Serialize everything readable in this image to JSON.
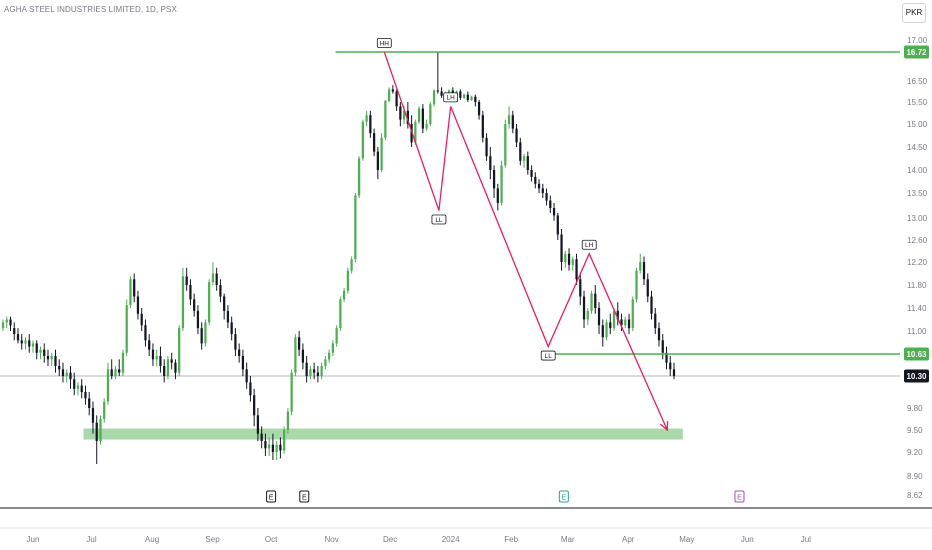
{
  "header": {
    "title": "AGHA STEEL INDUSTRIES LIMITED, 1D, PSX",
    "currency": "PKR"
  },
  "colors": {
    "up": "#4caf50",
    "down": "#131722",
    "level_line": "#4caf50",
    "pattern_line": "#e91e63",
    "zone_fill": "#a5d6a7",
    "current_line": "#b2b5be"
  },
  "chart_data": {
    "type": "candlestick",
    "title": "AGHA STEEL INDUSTRIES LIMITED, 1D, PSX",
    "y_ticks": [
      "17.00",
      "16.50",
      "15.50",
      "15.00",
      "14.50",
      "14.00",
      "13.50",
      "13.00",
      "12.60",
      "12.20",
      "11.80",
      "11.40",
      "11.00",
      "9.80",
      "9.50",
      "9.20",
      "8.90",
      "8.62"
    ],
    "x_ticks": [
      "Jun",
      "Jul",
      "Aug",
      "Sep",
      "Oct",
      "Nov",
      "Dec",
      "2024",
      "Feb",
      "Mar",
      "Apr",
      "May",
      "Jun",
      "Jul"
    ],
    "price_labels": [
      {
        "value": "16.72",
        "kind": "resistance"
      },
      {
        "value": "10.63",
        "kind": "level"
      },
      {
        "value": "10.30",
        "kind": "current"
      }
    ],
    "pattern_labels": [
      "HH",
      "LL",
      "LH",
      "LL",
      "LH"
    ],
    "support_zone": {
      "from": 9.37,
      "to": 9.52
    },
    "events": [
      "E",
      "E",
      "E",
      "E"
    ],
    "path_points": [
      {
        "date": "2023-11-28",
        "price": 16.72,
        "label": "HH"
      },
      {
        "date": "2023-12-26",
        "price": 13.15,
        "label": "LL"
      },
      {
        "date": "2024-01-01",
        "price": 15.4,
        "label": "LH"
      },
      {
        "date": "2024-02-20",
        "price": 10.75,
        "label": "LL"
      },
      {
        "date": "2024-03-12",
        "price": 12.35,
        "label": "LH"
      },
      {
        "date": "2024-04-21",
        "price": 9.5,
        "label": ""
      }
    ],
    "candles": [
      [
        11.05,
        11.2,
        11.15,
        11.0
      ],
      [
        11.15,
        11.25,
        11.2,
        11.05
      ],
      [
        11.2,
        11.25,
        11.1,
        11.0
      ],
      [
        11.05,
        11.15,
        10.95,
        10.85
      ],
      [
        10.95,
        11.05,
        10.85,
        10.8
      ],
      [
        10.85,
        10.95,
        10.8,
        10.7
      ],
      [
        10.8,
        10.9,
        10.85,
        10.7
      ],
      [
        10.85,
        10.95,
        10.75,
        10.65
      ],
      [
        10.75,
        10.85,
        10.8,
        10.65
      ],
      [
        10.8,
        10.85,
        10.65,
        10.55
      ],
      [
        10.65,
        10.75,
        10.7,
        10.55
      ],
      [
        10.7,
        10.8,
        10.6,
        10.5
      ],
      [
        10.6,
        10.7,
        10.55,
        10.45
      ],
      [
        10.55,
        10.65,
        10.6,
        10.45
      ],
      [
        10.6,
        10.7,
        10.45,
        10.35
      ],
      [
        10.45,
        10.55,
        10.4,
        10.3
      ],
      [
        10.4,
        10.5,
        10.3,
        10.2
      ],
      [
        10.3,
        10.4,
        10.35,
        10.2
      ],
      [
        10.35,
        10.45,
        10.25,
        10.1
      ],
      [
        10.25,
        10.35,
        10.1,
        10.0
      ],
      [
        10.1,
        10.2,
        10.15,
        10.0
      ],
      [
        10.15,
        10.25,
        10.05,
        9.95
      ],
      [
        10.05,
        10.15,
        9.95,
        9.85
      ],
      [
        9.95,
        10.05,
        9.8,
        9.7
      ],
      [
        9.8,
        9.9,
        9.6,
        9.45
      ],
      [
        9.6,
        9.7,
        9.35,
        9.05
      ],
      [
        9.35,
        9.7,
        9.65,
        9.3
      ],
      [
        9.65,
        9.95,
        9.9,
        9.6
      ],
      [
        9.9,
        10.5,
        10.4,
        9.85
      ],
      [
        10.4,
        10.55,
        10.3,
        10.25
      ],
      [
        10.3,
        10.45,
        10.4,
        10.25
      ],
      [
        10.4,
        10.55,
        10.35,
        10.3
      ],
      [
        10.35,
        10.7,
        10.65,
        10.3
      ],
      [
        10.65,
        11.55,
        11.45,
        10.6
      ],
      [
        11.45,
        11.95,
        11.9,
        11.4
      ],
      [
        11.9,
        12.0,
        11.6,
        11.5
      ],
      [
        11.6,
        11.7,
        11.3,
        11.2
      ],
      [
        11.3,
        11.4,
        11.1,
        11.0
      ],
      [
        11.1,
        11.2,
        10.85,
        10.75
      ],
      [
        10.85,
        10.95,
        10.7,
        10.6
      ],
      [
        10.7,
        10.8,
        10.55,
        10.45
      ],
      [
        10.55,
        10.7,
        10.6,
        10.45
      ],
      [
        10.6,
        10.75,
        10.45,
        10.35
      ],
      [
        10.45,
        10.55,
        10.3,
        10.2
      ],
      [
        10.3,
        10.6,
        10.55,
        10.25
      ],
      [
        10.55,
        10.65,
        10.5,
        10.4
      ],
      [
        10.5,
        10.55,
        10.35,
        10.25
      ],
      [
        10.35,
        11.1,
        11.05,
        10.3
      ],
      [
        11.05,
        12.1,
        11.95,
        11.0
      ],
      [
        11.95,
        12.1,
        11.8,
        11.7
      ],
      [
        11.8,
        11.9,
        11.55,
        11.45
      ],
      [
        11.55,
        11.65,
        11.35,
        11.25
      ],
      [
        11.35,
        11.45,
        11.05,
        10.95
      ],
      [
        11.05,
        11.15,
        10.8,
        10.7
      ],
      [
        10.8,
        11.2,
        11.15,
        10.75
      ],
      [
        11.15,
        11.9,
        11.85,
        11.1
      ],
      [
        11.85,
        12.2,
        12.0,
        11.8
      ],
      [
        12.0,
        12.1,
        11.8,
        11.7
      ],
      [
        11.8,
        11.9,
        11.6,
        11.5
      ],
      [
        11.6,
        11.65,
        11.35,
        11.2
      ],
      [
        11.35,
        11.45,
        11.15,
        11.05
      ],
      [
        11.15,
        11.25,
        10.95,
        10.85
      ],
      [
        10.95,
        11.05,
        10.7,
        10.6
      ],
      [
        10.7,
        10.8,
        10.6,
        10.5
      ],
      [
        10.6,
        10.7,
        10.4,
        10.3
      ],
      [
        10.4,
        10.5,
        10.2,
        10.1
      ],
      [
        10.2,
        10.3,
        10.0,
        9.9
      ],
      [
        10.0,
        10.1,
        9.7,
        9.55
      ],
      [
        9.7,
        9.8,
        9.45,
        9.35
      ],
      [
        9.45,
        9.55,
        9.35,
        9.25
      ],
      [
        9.35,
        9.45,
        9.25,
        9.15
      ],
      [
        9.25,
        9.4,
        9.3,
        9.15
      ],
      [
        9.3,
        9.45,
        9.2,
        9.1
      ],
      [
        9.2,
        9.35,
        9.3,
        9.1
      ],
      [
        9.3,
        9.4,
        9.22,
        9.12
      ],
      [
        9.22,
        9.55,
        9.5,
        9.18
      ],
      [
        9.5,
        9.8,
        9.75,
        9.45
      ],
      [
        9.75,
        10.4,
        10.35,
        9.7
      ],
      [
        10.35,
        10.95,
        10.9,
        10.3
      ],
      [
        10.9,
        11.0,
        10.7,
        10.6
      ],
      [
        10.7,
        10.8,
        10.5,
        10.4
      ],
      [
        10.5,
        10.6,
        10.3,
        10.2
      ],
      [
        10.3,
        10.45,
        10.4,
        10.25
      ],
      [
        10.4,
        10.5,
        10.35,
        10.25
      ],
      [
        10.35,
        10.45,
        10.3,
        10.2
      ],
      [
        10.3,
        10.5,
        10.45,
        10.25
      ],
      [
        10.45,
        10.6,
        10.55,
        10.4
      ],
      [
        10.55,
        10.7,
        10.65,
        10.5
      ],
      [
        10.65,
        10.85,
        10.8,
        10.6
      ],
      [
        10.8,
        11.1,
        11.05,
        10.75
      ],
      [
        11.05,
        11.6,
        11.55,
        11.0
      ],
      [
        11.55,
        11.75,
        11.7,
        11.5
      ],
      [
        11.7,
        12.1,
        12.05,
        11.65
      ],
      [
        12.05,
        12.3,
        12.25,
        12.0
      ],
      [
        12.25,
        13.5,
        13.45,
        12.2
      ],
      [
        13.45,
        14.3,
        14.25,
        13.4
      ],
      [
        14.25,
        15.1,
        15.05,
        14.2
      ],
      [
        15.05,
        15.3,
        15.2,
        14.95
      ],
      [
        15.2,
        15.3,
        14.8,
        14.7
      ],
      [
        14.8,
        14.9,
        14.4,
        14.3
      ],
      [
        14.4,
        14.5,
        14.0,
        13.8
      ],
      [
        14.0,
        14.8,
        14.7,
        13.95
      ],
      [
        14.7,
        15.6,
        15.55,
        14.65
      ],
      [
        15.55,
        16.2,
        16.1,
        15.5
      ],
      [
        16.1,
        16.3,
        16.0,
        15.9
      ],
      [
        16.0,
        16.1,
        15.4,
        15.3
      ],
      [
        15.4,
        15.5,
        15.1,
        14.95
      ],
      [
        15.1,
        15.4,
        15.3,
        15.0
      ],
      [
        15.3,
        15.5,
        15.0,
        14.9
      ],
      [
        15.0,
        15.2,
        14.6,
        14.5
      ],
      [
        14.6,
        15.1,
        15.05,
        14.55
      ],
      [
        15.05,
        15.4,
        15.35,
        15.0
      ],
      [
        15.35,
        15.45,
        14.9,
        14.8
      ],
      [
        14.9,
        15.1,
        15.0,
        14.85
      ],
      [
        15.0,
        15.5,
        15.45,
        14.95
      ],
      [
        15.45,
        16.1,
        16.05,
        15.4
      ],
      [
        16.05,
        16.72,
        16.0,
        15.9
      ],
      [
        16.0,
        16.2,
        15.8,
        15.7
      ],
      [
        15.8,
        16.0,
        15.9,
        15.75
      ],
      [
        15.9,
        16.1,
        16.05,
        15.85
      ],
      [
        16.05,
        16.2,
        15.85,
        15.75
      ],
      [
        15.85,
        16.05,
        16.0,
        15.8
      ],
      [
        16.0,
        16.1,
        15.7,
        15.6
      ],
      [
        15.7,
        15.9,
        15.85,
        15.65
      ],
      [
        15.85,
        16.0,
        15.6,
        15.5
      ],
      [
        15.6,
        15.8,
        15.75,
        15.55
      ],
      [
        15.75,
        15.85,
        15.5,
        15.4
      ],
      [
        15.5,
        15.6,
        15.2,
        15.1
      ],
      [
        15.2,
        15.3,
        14.7,
        14.6
      ],
      [
        14.7,
        14.8,
        14.3,
        14.2
      ],
      [
        14.3,
        14.5,
        14.0,
        13.8
      ],
      [
        14.0,
        14.1,
        13.6,
        13.4
      ],
      [
        13.6,
        13.7,
        13.3,
        13.15
      ],
      [
        13.3,
        14.2,
        14.1,
        13.25
      ],
      [
        14.1,
        15.1,
        15.0,
        14.05
      ],
      [
        15.0,
        15.4,
        15.2,
        14.9
      ],
      [
        15.2,
        15.3,
        14.9,
        14.8
      ],
      [
        14.9,
        15.0,
        14.6,
        14.5
      ],
      [
        14.6,
        14.7,
        14.2,
        14.1
      ],
      [
        14.2,
        14.35,
        14.3,
        14.05
      ],
      [
        14.3,
        14.4,
        14.0,
        13.9
      ],
      [
        14.0,
        14.1,
        13.85,
        13.75
      ],
      [
        13.85,
        13.95,
        13.7,
        13.6
      ],
      [
        13.7,
        13.8,
        13.6,
        13.5
      ],
      [
        13.6,
        13.7,
        13.5,
        13.4
      ],
      [
        13.5,
        13.6,
        13.35,
        13.25
      ],
      [
        13.35,
        13.45,
        13.2,
        13.1
      ],
      [
        13.2,
        13.3,
        13.05,
        12.95
      ],
      [
        13.05,
        13.1,
        12.7,
        12.6
      ],
      [
        12.7,
        12.8,
        12.2,
        12.05
      ],
      [
        12.2,
        12.4,
        12.35,
        12.1
      ],
      [
        12.35,
        12.45,
        12.15,
        12.05
      ],
      [
        12.15,
        12.3,
        12.25,
        12.05
      ],
      [
        12.25,
        12.35,
        11.9,
        11.8
      ],
      [
        11.9,
        12.0,
        11.6,
        11.45
      ],
      [
        11.6,
        11.7,
        11.2,
        11.05
      ],
      [
        11.2,
        11.4,
        11.35,
        11.1
      ],
      [
        11.35,
        11.7,
        11.65,
        11.3
      ],
      [
        11.65,
        11.8,
        11.4,
        11.3
      ],
      [
        11.4,
        11.5,
        11.1,
        10.95
      ],
      [
        11.1,
        11.2,
        10.9,
        10.75
      ],
      [
        10.9,
        11.2,
        11.15,
        10.85
      ],
      [
        11.15,
        11.3,
        11.05,
        10.95
      ],
      [
        11.05,
        11.4,
        11.35,
        11.0
      ],
      [
        11.35,
        11.5,
        11.2,
        11.1
      ],
      [
        11.2,
        11.3,
        11.1,
        11.0
      ],
      [
        11.1,
        11.25,
        11.2,
        11.05
      ],
      [
        11.2,
        11.3,
        11.05,
        10.95
      ],
      [
        11.05,
        11.6,
        11.55,
        11.0
      ],
      [
        11.55,
        12.1,
        12.05,
        11.5
      ],
      [
        12.05,
        12.35,
        12.2,
        12.0
      ],
      [
        12.2,
        12.3,
        11.9,
        11.8
      ],
      [
        11.9,
        12.0,
        11.6,
        11.5
      ],
      [
        11.6,
        11.7,
        11.3,
        11.2
      ],
      [
        11.3,
        11.4,
        11.05,
        10.95
      ],
      [
        11.05,
        11.15,
        10.85,
        10.75
      ],
      [
        10.85,
        10.95,
        10.65,
        10.55
      ],
      [
        10.65,
        10.75,
        10.5,
        10.4
      ],
      [
        10.5,
        10.6,
        10.4,
        10.3
      ],
      [
        10.4,
        10.5,
        10.3,
        10.25
      ]
    ]
  }
}
